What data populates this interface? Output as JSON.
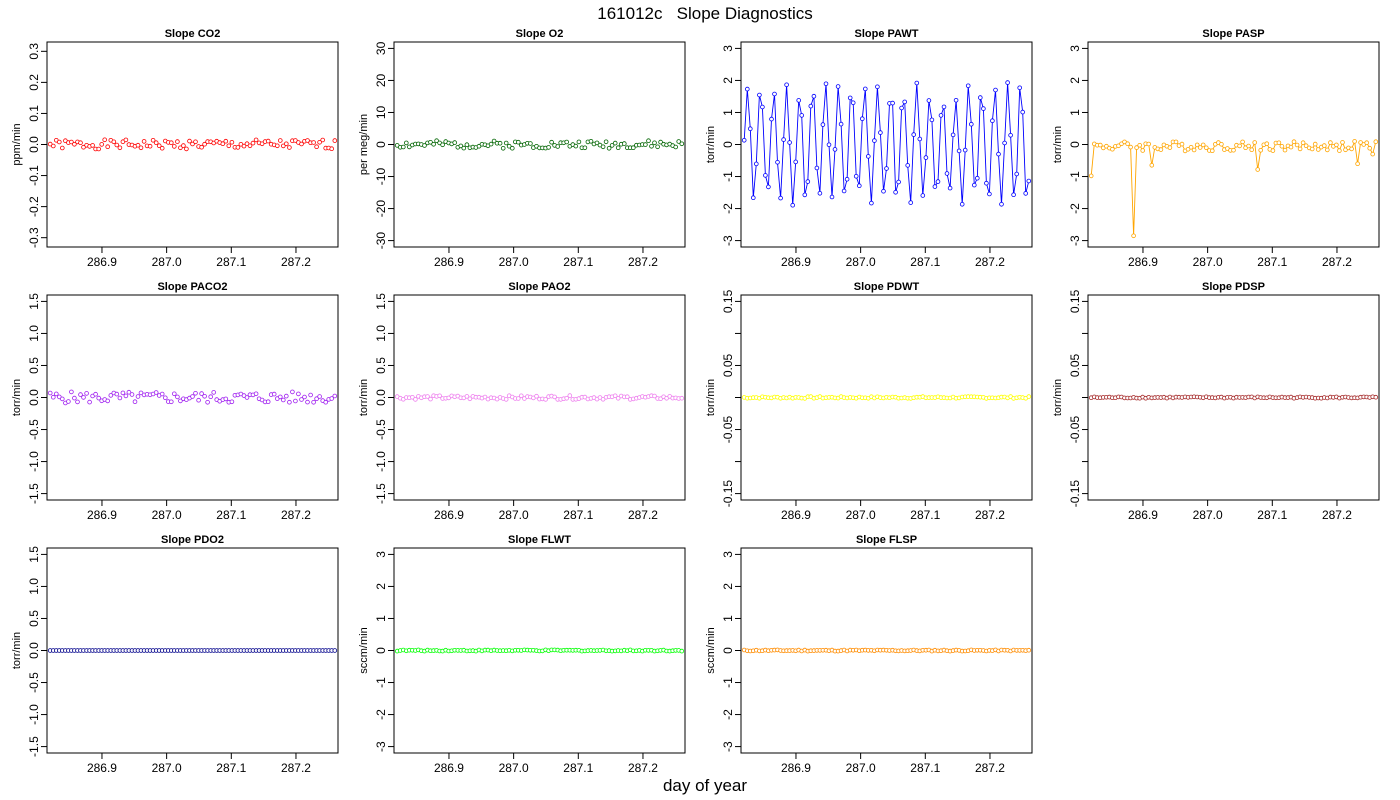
{
  "figure": {
    "title": "161012c   Slope Diagnostics",
    "xlabel": "day of year"
  },
  "chart_data": [
    {
      "type": "scatter",
      "title": "Slope CO2",
      "ylabel": "ppm/min",
      "xlim": [
        286.815,
        287.265
      ],
      "ylim": [
        -0.33,
        0.33
      ],
      "yticks": [
        -0.3,
        -0.2,
        -0.1,
        0.0,
        0.1,
        0.2,
        0.3
      ],
      "xticks": [
        286.9,
        287.0,
        287.1,
        287.2
      ],
      "color": "#ff0000",
      "lines": false,
      "pattern": "noise",
      "amp": 0.015,
      "base": 0.0,
      "seed": 1,
      "n": 95,
      "x_range": [
        286.82,
        287.26
      ]
    },
    {
      "type": "scatter",
      "title": "Slope O2",
      "ylabel": "per meg/min",
      "xlim": [
        286.815,
        287.265
      ],
      "ylim": [
        -32,
        32
      ],
      "yticks": [
        -30,
        -20,
        -10,
        0,
        10,
        20,
        30
      ],
      "xticks": [
        286.9,
        287.0,
        287.1,
        287.2
      ],
      "color": "#006400",
      "lines": false,
      "pattern": "noise",
      "amp": 1.2,
      "base": 0.0,
      "seed": 2,
      "n": 95,
      "x_range": [
        286.82,
        287.26
      ]
    },
    {
      "type": "line",
      "title": "Slope PAWT",
      "ylabel": "torr/min",
      "xlim": [
        286.815,
        287.265
      ],
      "ylim": [
        -3.2,
        3.2
      ],
      "yticks": [
        -3,
        -2,
        -1,
        0,
        1,
        2,
        3
      ],
      "xticks": [
        286.9,
        287.0,
        287.1,
        287.2
      ],
      "color": "#0000ff",
      "lines": true,
      "pattern": "oscillation",
      "amp": 2.0,
      "period": 4.3,
      "base": 0.0,
      "seed": 3,
      "n": 95,
      "x_range": [
        286.82,
        287.26
      ]
    },
    {
      "type": "line",
      "title": "Slope PASP",
      "ylabel": "torr/min",
      "xlim": [
        286.815,
        287.265
      ],
      "ylim": [
        -3.2,
        3.2
      ],
      "yticks": [
        -3,
        -2,
        -1,
        0,
        1,
        2,
        3
      ],
      "xticks": [
        286.9,
        287.0,
        287.1,
        287.2
      ],
      "color": "#ffa500",
      "lines": true,
      "pattern": "noise",
      "amp": 0.15,
      "base": -0.05,
      "seed": 4,
      "n": 95,
      "x_range": [
        286.82,
        287.26
      ],
      "spikes": [
        [
          0,
          -0.98
        ],
        [
          14,
          -2.85
        ],
        [
          20,
          -0.65
        ],
        [
          55,
          -0.78
        ],
        [
          88,
          -0.6
        ],
        [
          93,
          -0.3
        ]
      ]
    },
    {
      "type": "scatter",
      "title": "Slope PACO2",
      "ylabel": "torr/min",
      "xlim": [
        286.815,
        287.265
      ],
      "ylim": [
        -1.6,
        1.6
      ],
      "yticks": [
        -1.5,
        -1.0,
        -0.5,
        0.0,
        0.5,
        1.0,
        1.5
      ],
      "xticks": [
        286.9,
        287.0,
        287.1,
        287.2
      ],
      "color": "#a020f0",
      "lines": false,
      "pattern": "noise",
      "amp": 0.09,
      "base": 0.0,
      "seed": 5,
      "n": 95,
      "x_range": [
        286.82,
        287.26
      ]
    },
    {
      "type": "scatter",
      "title": "Slope PAO2",
      "ylabel": "torr/min",
      "xlim": [
        286.815,
        287.265
      ],
      "ylim": [
        -1.6,
        1.6
      ],
      "yticks": [
        -1.5,
        -1.0,
        -0.5,
        0.0,
        0.5,
        1.0,
        1.5
      ],
      "xticks": [
        286.9,
        287.0,
        287.1,
        287.2
      ],
      "color": "#ee82ee",
      "lines": false,
      "pattern": "noise",
      "amp": 0.03,
      "base": 0.0,
      "seed": 6,
      "n": 95,
      "x_range": [
        286.82,
        287.26
      ]
    },
    {
      "type": "scatter",
      "title": "Slope PDWT",
      "ylabel": "torr/min",
      "xlim": [
        286.815,
        287.265
      ],
      "ylim": [
        -0.16,
        0.16
      ],
      "yticks": [
        -0.15,
        -0.05,
        0.05,
        0.15
      ],
      "yticks_minor": [
        -0.1,
        0.0,
        0.1
      ],
      "xticks": [
        286.9,
        287.0,
        287.1,
        287.2
      ],
      "color": "#ffff00",
      "lines": false,
      "pattern": "noise",
      "amp": 0.0015,
      "base": 0.0,
      "seed": 7,
      "n": 95,
      "x_range": [
        286.82,
        287.26
      ]
    },
    {
      "type": "line",
      "title": "Slope PDSP",
      "ylabel": "torr/min",
      "xlim": [
        286.815,
        287.265
      ],
      "ylim": [
        -0.16,
        0.16
      ],
      "yticks": [
        -0.15,
        -0.05,
        0.05,
        0.15
      ],
      "yticks_minor": [
        -0.1,
        0.0,
        0.1
      ],
      "xticks": [
        286.9,
        287.0,
        287.1,
        287.2
      ],
      "color": "#a52a2a",
      "lines": true,
      "pattern": "noise",
      "amp": 0.0012,
      "base": 0.0,
      "seed": 8,
      "n": 95,
      "x_range": [
        286.82,
        287.26
      ]
    },
    {
      "type": "scatter",
      "title": "Slope PDO2",
      "ylabel": "torr/min",
      "xlim": [
        286.815,
        287.265
      ],
      "ylim": [
        -1.6,
        1.6
      ],
      "yticks": [
        -1.5,
        -1.0,
        -0.5,
        0.0,
        0.5,
        1.0,
        1.5
      ],
      "xticks": [
        286.9,
        287.0,
        287.1,
        287.2
      ],
      "color": "#00008b",
      "lines": false,
      "pattern": "flat",
      "amp": 0.0,
      "base": 0.0,
      "seed": 9,
      "n": 95,
      "x_range": [
        286.82,
        287.26
      ]
    },
    {
      "type": "scatter",
      "title": "Slope FLWT",
      "ylabel": "sccm/min",
      "xlim": [
        286.815,
        287.265
      ],
      "ylim": [
        -3.2,
        3.2
      ],
      "yticks": [
        -3,
        -2,
        -1,
        0,
        1,
        2,
        3
      ],
      "xticks": [
        286.9,
        287.0,
        287.1,
        287.2
      ],
      "color": "#00ff00",
      "lines": false,
      "pattern": "noise",
      "amp": 0.02,
      "base": 0.0,
      "seed": 10,
      "n": 95,
      "x_range": [
        286.82,
        287.26
      ]
    },
    {
      "type": "scatter",
      "title": "Slope FLSP",
      "ylabel": "sccm/min",
      "xlim": [
        286.815,
        287.265
      ],
      "ylim": [
        -3.2,
        3.2
      ],
      "yticks": [
        -3,
        -2,
        -1,
        0,
        1,
        2,
        3
      ],
      "xticks": [
        286.9,
        287.0,
        287.1,
        287.2
      ],
      "color": "#ff8c00",
      "lines": false,
      "pattern": "noise",
      "amp": 0.02,
      "base": 0.0,
      "seed": 11,
      "n": 95,
      "x_range": [
        286.82,
        287.26
      ]
    }
  ]
}
